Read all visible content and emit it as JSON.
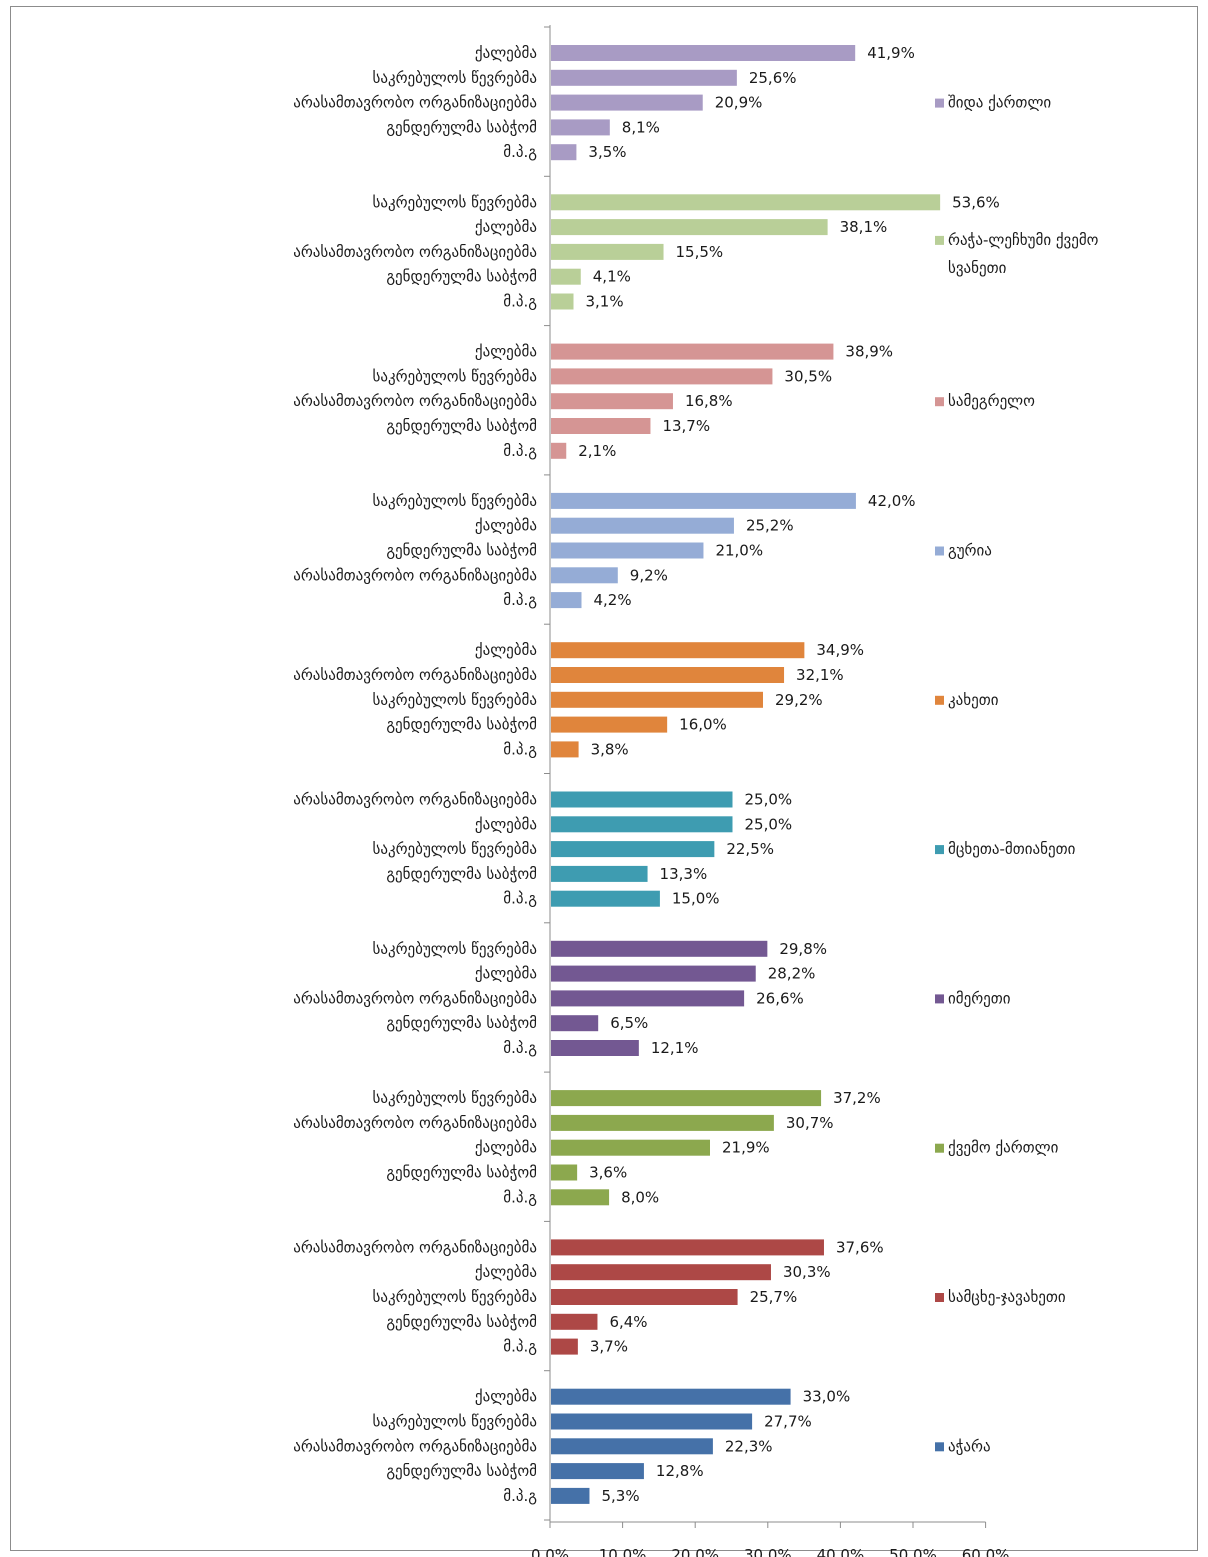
{
  "chart_data": {
    "type": "bar",
    "orientation": "horizontal",
    "xlim": [
      0,
      60
    ],
    "x_ticks": [
      "0,0%",
      "10,0%",
      "20,0%",
      "30,0%",
      "40,0%",
      "50,0%",
      "60,0%"
    ],
    "grid": false,
    "legend_placement": "right",
    "groups": [
      {
        "name": "შიდა ქართლი",
        "legend_lines": [
          "შიდა ქართლი"
        ],
        "color": "#a89bc4",
        "categories": [
          "ქალებმა",
          "საკრებულოს წევრებმა",
          "არასამთავრობო ორგანიზაციებმა",
          "გენდერულმა საბჭომ",
          "მ.პ.გ"
        ],
        "values": [
          41.9,
          25.6,
          20.9,
          8.1,
          3.5
        ],
        "labels": [
          "41,9%",
          "25,6%",
          "20,9%",
          "8,1%",
          "3,5%"
        ]
      },
      {
        "name": "რაჭა-ლეჩხუმი ქვემო სვანეთი",
        "legend_lines": [
          "რაჭა-ლეჩხუმი ქვემო",
          "სვანეთი"
        ],
        "color": "#b9cf98",
        "categories": [
          "საკრებულოს წევრებმა",
          "ქალებმა",
          "არასამთავრობო ორგანიზაციებმა",
          "გენდერულმა საბჭომ",
          "მ.პ.გ"
        ],
        "values": [
          53.6,
          38.1,
          15.5,
          4.1,
          3.1
        ],
        "labels": [
          "53,6%",
          "38,1%",
          "15,5%",
          "4,1%",
          "3,1%"
        ]
      },
      {
        "name": "სამეგრელო",
        "legend_lines": [
          "სამეგრელო"
        ],
        "color": "#d59594",
        "categories": [
          "ქალებმა",
          "საკრებულოს წევრებმა",
          "არასამთავრობო ორგანიზაციებმა",
          "გენდერულმა საბჭომ",
          "მ.პ.გ"
        ],
        "values": [
          38.9,
          30.5,
          16.8,
          13.7,
          2.1
        ],
        "labels": [
          "38,9%",
          "30,5%",
          "16,8%",
          "13,7%",
          "2,1%"
        ]
      },
      {
        "name": "გურია",
        "legend_lines": [
          "გურია"
        ],
        "color": "#95acd6",
        "categories": [
          "საკრებულოს წევრებმა",
          "ქალებმა",
          "გენდერულმა საბჭომ",
          "არასამთავრობო ორგანიზაციებმა",
          "მ.პ.გ"
        ],
        "values": [
          42.0,
          25.2,
          21.0,
          9.2,
          4.2
        ],
        "labels": [
          "42,0%",
          "25,2%",
          "21,0%",
          "9,2%",
          "4,2%"
        ]
      },
      {
        "name": "კახეთი",
        "legend_lines": [
          "კახეთი"
        ],
        "color": "#e0853c",
        "categories": [
          "ქალებმა",
          "არასამთავრობო ორგანიზაციებმა",
          "საკრებულოს წევრებმა",
          "გენდერულმა საბჭომ",
          "მ.პ.გ"
        ],
        "values": [
          34.9,
          32.1,
          29.2,
          16.0,
          3.8
        ],
        "labels": [
          "34,9%",
          "32,1%",
          "29,2%",
          "16,0%",
          "3,8%"
        ]
      },
      {
        "name": "მცხეთა-მთიანეთი",
        "legend_lines": [
          "მცხეთა-მთიანეთი"
        ],
        "color": "#3e9cb1",
        "categories": [
          "არასამთავრობო ორგანიზაციებმა",
          "ქალებმა",
          "საკრებულოს წევრებმა",
          "გენდერულმა საბჭომ",
          "მ.პ.გ"
        ],
        "values": [
          25.0,
          25.0,
          22.5,
          13.3,
          15.0
        ],
        "labels": [
          "25,0%",
          "25,0%",
          "22,5%",
          "13,3%",
          "15,0%"
        ]
      },
      {
        "name": "იმერეთი",
        "legend_lines": [
          "იმერეთი"
        ],
        "color": "#735892",
        "categories": [
          "საკრებულოს წევრებმა",
          "ქალებმა",
          "არასამთავრობო ორგანიზაციებმა",
          "გენდერულმა საბჭომ",
          "მ.პ.გ"
        ],
        "values": [
          29.8,
          28.2,
          26.6,
          6.5,
          12.1
        ],
        "labels": [
          "29,8%",
          "28,2%",
          "26,6%",
          "6,5%",
          "12,1%"
        ]
      },
      {
        "name": "ქვემო ქართლი",
        "legend_lines": [
          "ქვემო ქართლი"
        ],
        "color": "#8ca84e",
        "categories": [
          "საკრებულოს წევრებმა",
          "არასამთავრობო ორგანიზაციებმა",
          "ქალებმა",
          "გენდერულმა საბჭომ",
          "მ.პ.გ"
        ],
        "values": [
          37.2,
          30.7,
          21.9,
          3.6,
          8.0
        ],
        "labels": [
          "37,2%",
          "30,7%",
          "21,9%",
          "3,6%",
          "8,0%"
        ]
      },
      {
        "name": "სამცხე-ჯავახეთი",
        "legend_lines": [
          "სამცხე-ჯავახეთი"
        ],
        "color": "#ad4846",
        "categories": [
          "არასამთავრობო ორგანიზაციებმა",
          "ქალებმა",
          "საკრებულოს წევრებმა",
          "გენდერულმა საბჭომ",
          "მ.პ.გ"
        ],
        "values": [
          37.6,
          30.3,
          25.7,
          6.4,
          3.7
        ],
        "labels": [
          "37,6%",
          "30,3%",
          "25,7%",
          "6,4%",
          "3,7%"
        ]
      },
      {
        "name": "აჭარა",
        "legend_lines": [
          "აჭარა"
        ],
        "color": "#4571a8",
        "categories": [
          "ქალებმა",
          "საკრებულოს წევრებმა",
          "არასამთავრობო ორგანიზაციებმა",
          "გენდერულმა საბჭომ",
          "მ.პ.გ"
        ],
        "values": [
          33.0,
          27.7,
          22.3,
          12.8,
          5.3
        ],
        "labels": [
          "33,0%",
          "27,7%",
          "22,3%",
          "12,8%",
          "5,3%"
        ]
      }
    ]
  }
}
